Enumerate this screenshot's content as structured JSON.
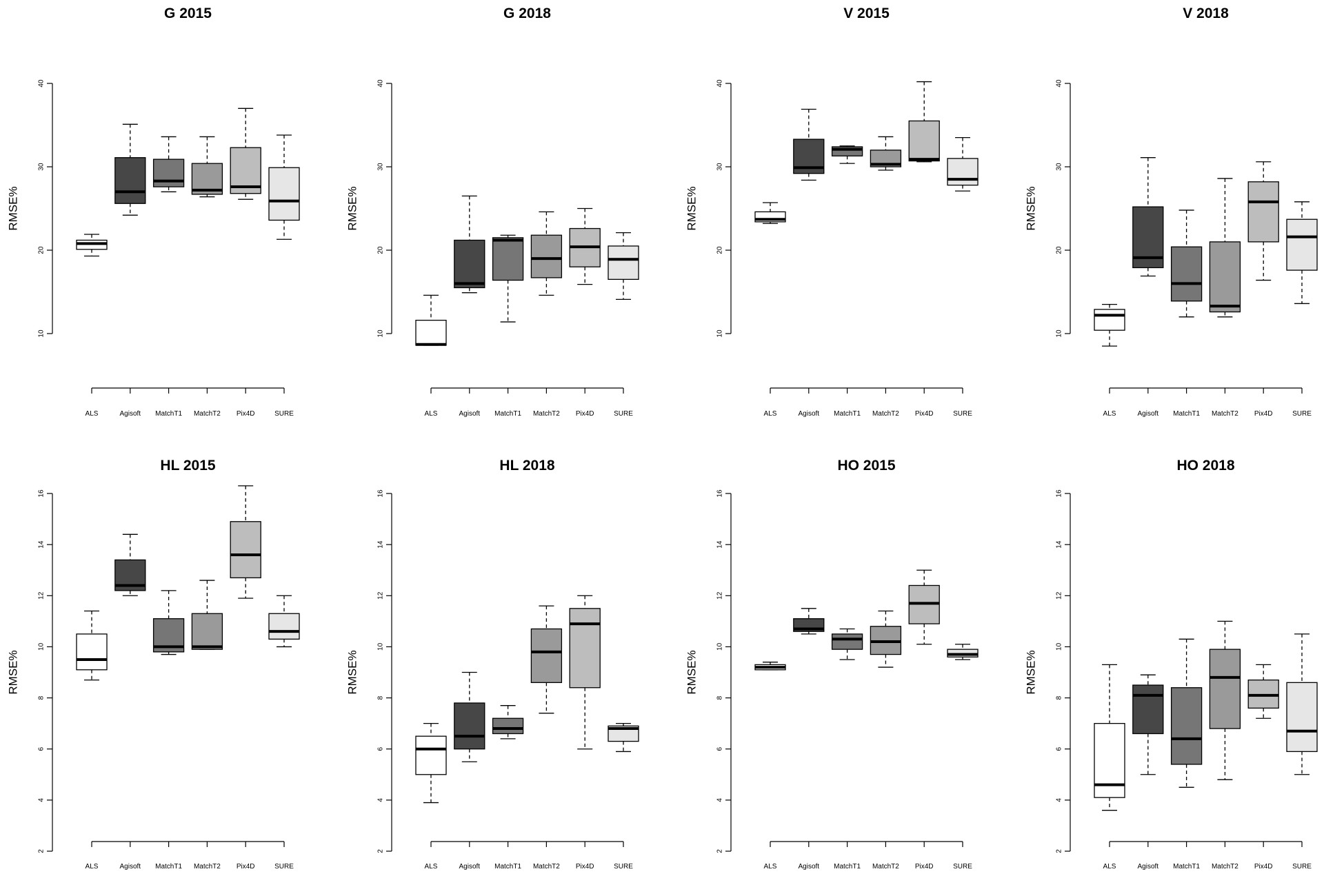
{
  "chart_data": [
    {
      "type": "box",
      "title": "G 2015",
      "ylabel": "RMSE%",
      "ylim": [
        10,
        40
      ],
      "yticks": [
        10,
        20,
        30,
        40
      ],
      "categories": [
        "ALS",
        "Agisoft",
        "MatchT1",
        "MatchT2",
        "Pix4D",
        "SURE"
      ],
      "boxes": [
        {
          "min": 19.3,
          "q1": 20.1,
          "median": 20.8,
          "q3": 21.2,
          "max": 21.9
        },
        {
          "min": 24.2,
          "q1": 25.6,
          "median": 27.0,
          "q3": 31.1,
          "max": 35.1
        },
        {
          "min": 27.0,
          "q1": 27.6,
          "median": 28.3,
          "q3": 30.9,
          "max": 33.6
        },
        {
          "min": 26.4,
          "q1": 26.7,
          "median": 27.2,
          "q3": 30.4,
          "max": 33.6
        },
        {
          "min": 26.1,
          "q1": 26.8,
          "median": 27.6,
          "q3": 32.3,
          "max": 37.0
        },
        {
          "min": 21.3,
          "q1": 23.6,
          "median": 25.9,
          "q3": 29.9,
          "max": 33.8
        }
      ]
    },
    {
      "type": "box",
      "title": "G 2018",
      "ylabel": "RMSE%",
      "ylim": [
        10,
        40
      ],
      "yticks": [
        10,
        20,
        30,
        40
      ],
      "categories": [
        "ALS",
        "Agisoft",
        "MatchT1",
        "MatchT2",
        "Pix4D",
        "SURE"
      ],
      "boxes": [
        {
          "min": 8.6,
          "q1": 8.6,
          "median": 8.7,
          "q3": 11.6,
          "max": 14.6
        },
        {
          "min": 14.9,
          "q1": 15.5,
          "median": 16.0,
          "q3": 21.2,
          "max": 26.5
        },
        {
          "min": 11.4,
          "q1": 16.4,
          "median": 21.2,
          "q3": 21.5,
          "max": 21.8
        },
        {
          "min": 14.6,
          "q1": 16.7,
          "median": 19.0,
          "q3": 21.8,
          "max": 24.6
        },
        {
          "min": 15.9,
          "q1": 18.0,
          "median": 20.4,
          "q3": 22.6,
          "max": 25.0
        },
        {
          "min": 14.1,
          "q1": 16.5,
          "median": 18.9,
          "q3": 20.5,
          "max": 22.1
        }
      ]
    },
    {
      "type": "box",
      "title": "V 2015",
      "ylabel": "RMSE%",
      "ylim": [
        10,
        40
      ],
      "yticks": [
        10,
        20,
        30,
        40
      ],
      "categories": [
        "ALS",
        "Agisoft",
        "MatchT1",
        "MatchT2",
        "Pix4D",
        "SURE"
      ],
      "boxes": [
        {
          "min": 23.2,
          "q1": 23.4,
          "median": 23.7,
          "q3": 24.6,
          "max": 25.7
        },
        {
          "min": 28.4,
          "q1": 29.2,
          "median": 29.9,
          "q3": 33.3,
          "max": 36.9
        },
        {
          "min": 30.4,
          "q1": 31.3,
          "median": 32.1,
          "q3": 32.4,
          "max": 32.5
        },
        {
          "min": 29.6,
          "q1": 30.0,
          "median": 30.3,
          "q3": 32.0,
          "max": 33.6
        },
        {
          "min": 30.6,
          "q1": 30.7,
          "median": 30.9,
          "q3": 35.5,
          "max": 40.2
        },
        {
          "min": 27.1,
          "q1": 27.8,
          "median": 28.5,
          "q3": 31.0,
          "max": 33.5
        }
      ]
    },
    {
      "type": "box",
      "title": "V 2018",
      "ylabel": "RMSE%",
      "ylim": [
        10,
        40
      ],
      "yticks": [
        10,
        20,
        30,
        40
      ],
      "categories": [
        "ALS",
        "Agisoft",
        "MatchT1",
        "MatchT2",
        "Pix4D",
        "SURE"
      ],
      "boxes": [
        {
          "min": 8.5,
          "q1": 10.4,
          "median": 12.2,
          "q3": 12.9,
          "max": 13.5
        },
        {
          "min": 16.9,
          "q1": 17.9,
          "median": 19.1,
          "q3": 25.2,
          "max": 31.1
        },
        {
          "min": 12.0,
          "q1": 13.9,
          "median": 16.0,
          "q3": 20.4,
          "max": 24.8
        },
        {
          "min": 12.0,
          "q1": 12.6,
          "median": 13.3,
          "q3": 21.0,
          "max": 28.6
        },
        {
          "min": 16.4,
          "q1": 21.0,
          "median": 25.8,
          "q3": 28.2,
          "max": 30.6
        },
        {
          "min": 13.6,
          "q1": 17.6,
          "median": 21.6,
          "q3": 23.7,
          "max": 25.8
        }
      ]
    },
    {
      "type": "box",
      "title": "HL 2015",
      "ylabel": "RMSE%",
      "ylim": [
        2,
        16
      ],
      "yticks": [
        2,
        4,
        6,
        8,
        10,
        12,
        14,
        16
      ],
      "categories": [
        "ALS",
        "Agisoft",
        "MatchT1",
        "MatchT2",
        "Pix4D",
        "SURE"
      ],
      "boxes": [
        {
          "min": 8.7,
          "q1": 9.1,
          "median": 9.5,
          "q3": 10.5,
          "max": 11.4
        },
        {
          "min": 12.0,
          "q1": 12.2,
          "median": 12.4,
          "q3": 13.4,
          "max": 14.4
        },
        {
          "min": 9.7,
          "q1": 9.8,
          "median": 10.0,
          "q3": 11.1,
          "max": 12.2
        },
        {
          "min": 9.9,
          "q1": 9.9,
          "median": 10.0,
          "q3": 11.3,
          "max": 12.6
        },
        {
          "min": 11.9,
          "q1": 12.7,
          "median": 13.6,
          "q3": 14.9,
          "max": 16.3
        },
        {
          "min": 10.0,
          "q1": 10.3,
          "median": 10.6,
          "q3": 11.3,
          "max": 12.0
        }
      ]
    },
    {
      "type": "box",
      "title": "HL 2018",
      "ylabel": "RMSE%",
      "ylim": [
        2,
        16
      ],
      "yticks": [
        2,
        4,
        6,
        8,
        10,
        12,
        14,
        16
      ],
      "categories": [
        "ALS",
        "Agisoft",
        "MatchT1",
        "MatchT2",
        "Pix4D",
        "SURE"
      ],
      "boxes": [
        {
          "min": 3.9,
          "q1": 5.0,
          "median": 6.0,
          "q3": 6.5,
          "max": 7.0
        },
        {
          "min": 5.5,
          "q1": 6.0,
          "median": 6.5,
          "q3": 7.8,
          "max": 9.0
        },
        {
          "min": 6.4,
          "q1": 6.6,
          "median": 6.8,
          "q3": 7.2,
          "max": 7.7
        },
        {
          "min": 7.4,
          "q1": 8.6,
          "median": 9.8,
          "q3": 10.7,
          "max": 11.6
        },
        {
          "min": 6.0,
          "q1": 8.4,
          "median": 10.9,
          "q3": 11.5,
          "max": 12.0
        },
        {
          "min": 5.9,
          "q1": 6.3,
          "median": 6.8,
          "q3": 6.9,
          "max": 7.0
        }
      ]
    },
    {
      "type": "box",
      "title": "HO 2015",
      "ylabel": "RMSE%",
      "ylim": [
        2,
        16
      ],
      "yticks": [
        2,
        4,
        6,
        8,
        10,
        12,
        14,
        16
      ],
      "categories": [
        "ALS",
        "Agisoft",
        "MatchT1",
        "MatchT2",
        "Pix4D",
        "SURE"
      ],
      "boxes": [
        {
          "min": 9.1,
          "q1": 9.1,
          "median": 9.2,
          "q3": 9.3,
          "max": 9.4
        },
        {
          "min": 10.5,
          "q1": 10.6,
          "median": 10.7,
          "q3": 11.1,
          "max": 11.5
        },
        {
          "min": 9.5,
          "q1": 9.9,
          "median": 10.3,
          "q3": 10.5,
          "max": 10.7
        },
        {
          "min": 9.2,
          "q1": 9.7,
          "median": 10.2,
          "q3": 10.8,
          "max": 11.4
        },
        {
          "min": 10.1,
          "q1": 10.9,
          "median": 11.7,
          "q3": 12.4,
          "max": 13.0
        },
        {
          "min": 9.5,
          "q1": 9.6,
          "median": 9.7,
          "q3": 9.9,
          "max": 10.1
        }
      ]
    },
    {
      "type": "box",
      "title": "HO 2018",
      "ylabel": "RMSE%",
      "ylim": [
        2,
        16
      ],
      "yticks": [
        2,
        4,
        6,
        8,
        10,
        12,
        14,
        16
      ],
      "categories": [
        "ALS",
        "Agisoft",
        "MatchT1",
        "MatchT2",
        "Pix4D",
        "SURE"
      ],
      "boxes": [
        {
          "min": 3.6,
          "q1": 4.1,
          "median": 4.6,
          "q3": 7.0,
          "max": 9.3
        },
        {
          "min": 5.0,
          "q1": 6.6,
          "median": 8.1,
          "q3": 8.5,
          "max": 8.9
        },
        {
          "min": 4.5,
          "q1": 5.4,
          "median": 6.4,
          "q3": 8.4,
          "max": 10.3
        },
        {
          "min": 4.8,
          "q1": 6.8,
          "median": 8.8,
          "q3": 9.9,
          "max": 11.0
        },
        {
          "min": 7.2,
          "q1": 7.6,
          "median": 8.1,
          "q3": 8.7,
          "max": 9.3
        },
        {
          "min": 5.0,
          "q1": 5.9,
          "median": 6.7,
          "q3": 8.6,
          "max": 10.5
        }
      ]
    }
  ],
  "colors": {
    "box_fills": [
      "#ffffff",
      "#474747",
      "#767676",
      "#9a9a9a",
      "#bdbdbd",
      "#e6e6e6"
    ],
    "outline": "#000000"
  }
}
